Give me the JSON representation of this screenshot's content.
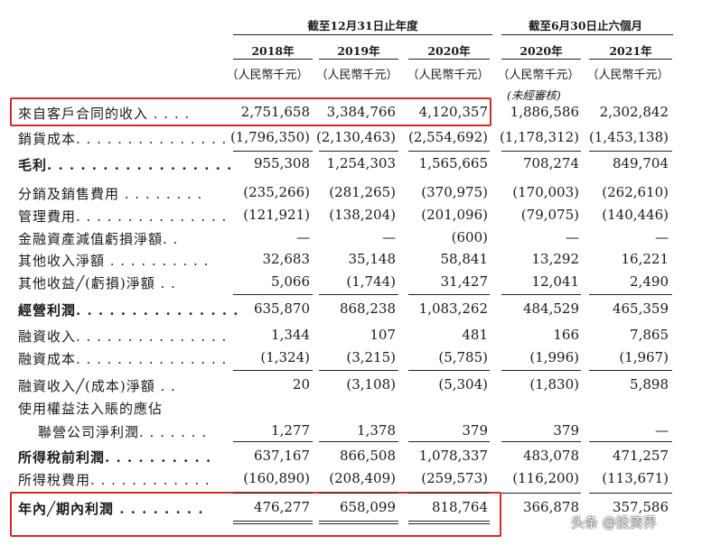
{
  "header": {
    "group_annual": "截至12月31日止年度",
    "group_half": "截至6月30日止六個月",
    "years": [
      "2018年",
      "2019年",
      "2020年",
      "2020年",
      "2021年"
    ],
    "units": [
      "（人民幣千元）",
      "（人民幣千元）",
      "（人民幣千元）",
      "（人民幣千元）",
      "（人民幣千元）"
    ],
    "unaudited": "(未經審核)"
  },
  "rows": [
    {
      "label": "來自客戶合同的收入 . . . .",
      "values": [
        "2,751,658",
        "3,384,766",
        "4,120,357",
        "1,886,586",
        "2,302,842"
      ]
    },
    {
      "label": "銷貨成本. . . . . . . . . . . . . . .",
      "values": [
        "(1,796,350)",
        "(2,130,463)",
        "(2,554,692)",
        "(1,178,312)",
        "(1,453,138)"
      ]
    },
    {
      "label": "毛利. . . . . . . . . . . . . . . . .",
      "values": [
        "955,308",
        "1,254,303",
        "1,565,665",
        "708,274",
        "849,704"
      ]
    },
    {
      "label": "分銷及銷售費用 . . . . . . . .",
      "values": [
        "(235,266)",
        "(281,265)",
        "(370,975)",
        "(170,003)",
        "(262,610)"
      ]
    },
    {
      "label": "管理費用. . . . . . . . . . . . . . .",
      "values": [
        "(121,921)",
        "(138,204)",
        "(201,096)",
        "(79,075)",
        "(140,446)"
      ]
    },
    {
      "label": "金融資產減值虧損淨額. .",
      "values": [
        "—",
        "—",
        "(600)",
        "—",
        "—"
      ]
    },
    {
      "label": "其他收入淨額 . . . . . . . . . .",
      "values": [
        "32,683",
        "35,148",
        "58,841",
        "13,292",
        "16,221"
      ]
    },
    {
      "label": "其他收益╱(虧損)淨額 . .",
      "values": [
        "5,066",
        "(1,744)",
        "31,427",
        "12,041",
        "2,490"
      ]
    },
    {
      "label": "經營利潤. . . . . . . . . . . . . . .",
      "values": [
        "635,870",
        "868,238",
        "1,083,262",
        "484,529",
        "465,359"
      ]
    },
    {
      "label": "融資收入. . . . . . . . . . . . . . .",
      "values": [
        "1,344",
        "107",
        "481",
        "166",
        "7,865"
      ]
    },
    {
      "label": "融資成本. . . . . . . . . . . . . . .",
      "values": [
        "(1,324)",
        "(3,215)",
        "(5,785)",
        "(1,996)",
        "(1,967)"
      ]
    },
    {
      "label": "融資收入╱(成本)淨額 . .",
      "values": [
        "20",
        "(3,108)",
        "(5,304)",
        "(1,830)",
        "5,898"
      ]
    },
    {
      "label": "使用權益法入賬的應佔",
      "values": [
        "",
        "",
        "",
        "",
        ""
      ]
    },
    {
      "label": "聯營公司淨利潤. . . . . . .",
      "values": [
        "1,277",
        "1,378",
        "379",
        "379",
        "—"
      ]
    },
    {
      "label": "所得稅前利潤. . . . . . . . . .",
      "values": [
        "637,167",
        "866,508",
        "1,078,337",
        "483,078",
        "471,257"
      ]
    },
    {
      "label": "所得稅費用. . . . . . . . . . . .",
      "values": [
        "(160,890)",
        "(208,409)",
        "(259,573)",
        "(116,200)",
        "(113,671)"
      ]
    },
    {
      "label": "年內╱期內利潤 . . . . . . . .",
      "values": [
        "476,277",
        "658,099",
        "818,764",
        "366,878",
        "357,586"
      ]
    }
  ],
  "watermark": "头条 @投资界",
  "highlight_color": "#d22b2b"
}
